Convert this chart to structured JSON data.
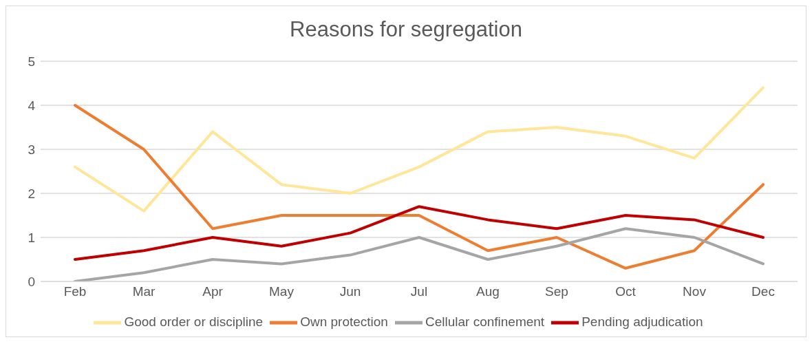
{
  "chart_data": {
    "type": "line",
    "title": "Reasons for segregation",
    "categories": [
      "Feb",
      "Mar",
      "Apr",
      "May",
      "Jun",
      "Jul",
      "Aug",
      "Sep",
      "Oct",
      "Nov",
      "Dec"
    ],
    "series": [
      {
        "name": "Good order or discipline",
        "color": "#ffe699",
        "values": [
          2.6,
          1.6,
          3.4,
          2.2,
          2.0,
          2.6,
          3.4,
          3.5,
          3.3,
          2.8,
          4.4
        ]
      },
      {
        "name": "Own protection",
        "color": "#ed7d31",
        "values": [
          4.0,
          3.0,
          1.2,
          1.5,
          1.5,
          1.5,
          0.7,
          1.0,
          0.3,
          0.7,
          2.2
        ]
      },
      {
        "name": "Cellular confinement",
        "color": "#a5a5a5",
        "values": [
          0,
          0.2,
          0.5,
          0.4,
          0.6,
          1.0,
          0.5,
          0.8,
          1.2,
          1.0,
          0.4
        ]
      },
      {
        "name": "Pending adjudication",
        "color": "#c00000",
        "values": [
          0.5,
          0.7,
          1.0,
          0.8,
          1.1,
          1.7,
          1.4,
          1.2,
          1.5,
          1.4,
          1.0
        ]
      }
    ],
    "ylim": [
      0,
      5
    ],
    "yticks": [
      0,
      1,
      2,
      3,
      4,
      5
    ],
    "grid": "y",
    "legend": "bottom",
    "marker": "none",
    "line_style": "solid"
  }
}
